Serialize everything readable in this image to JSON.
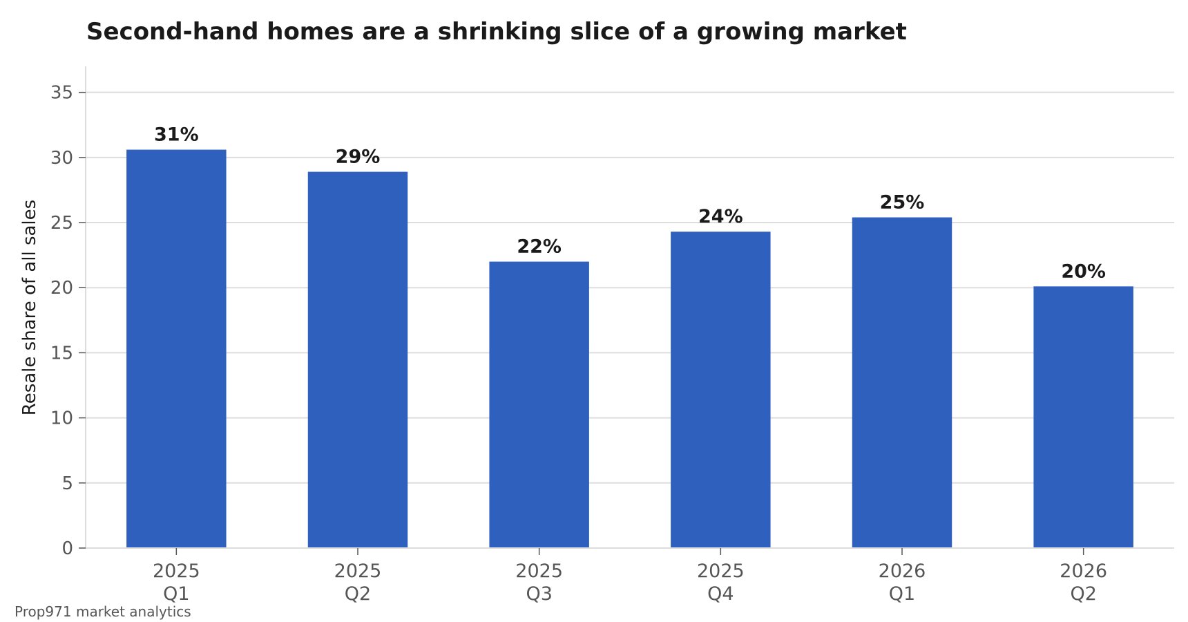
{
  "chart_data": {
    "type": "bar",
    "title": "Second-hand homes are a shrinking slice of a growing market",
    "xlabel": "",
    "ylabel": "Resale share of all sales",
    "categories": [
      [
        "2025",
        "Q1"
      ],
      [
        "2025",
        "Q2"
      ],
      [
        "2025",
        "Q3"
      ],
      [
        "2025",
        "Q4"
      ],
      [
        "2026",
        "Q1"
      ],
      [
        "2026",
        "Q2"
      ]
    ],
    "values": [
      30.6,
      28.9,
      22.0,
      24.3,
      25.4,
      20.1
    ],
    "data_labels": [
      "31%",
      "29%",
      "22%",
      "24%",
      "25%",
      "20%"
    ],
    "ylim": [
      0,
      37
    ],
    "yticks": [
      0,
      5,
      10,
      15,
      20,
      25,
      30,
      35
    ],
    "grid": "horizontal",
    "legend": "none",
    "bar_color": "#3060be",
    "grid_color": "#dddddd",
    "source": "Prop971 market analytics"
  }
}
